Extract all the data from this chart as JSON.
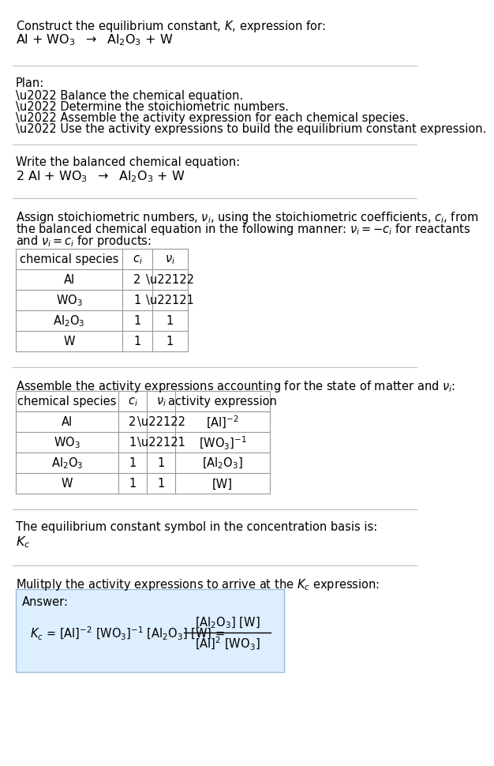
{
  "bg_color": "#ffffff",
  "text_color": "#000000",
  "answer_box_color": "#ddeeff",
  "table_border_color": "#999999",
  "line_color": "#bbbbbb",
  "section1_line1": "Construct the equilibrium constant, $K$, expression for:",
  "section1_line2": "Al + WO$_3$  $\\rightarrow$  Al$_2$O$_3$ + W",
  "plan_header": "Plan:",
  "plan_items": [
    "\\u2022 Balance the chemical equation.",
    "\\u2022 Determine the stoichiometric numbers.",
    "\\u2022 Assemble the activity expression for each chemical species.",
    "\\u2022 Use the activity expressions to build the equilibrium constant expression."
  ],
  "balanced_header": "Write the balanced chemical equation:",
  "balanced_eq": "2 Al + WO$_3$  $\\rightarrow$  Al$_2$O$_3$ + W",
  "stoich_intro_lines": [
    "Assign stoichiometric numbers, $\\nu_i$, using the stoichiometric coefficients, $c_i$, from",
    "the balanced chemical equation in the following manner: $\\nu_i = -c_i$ for reactants",
    "and $\\nu_i = c_i$ for products:"
  ],
  "table1_headers": [
    "chemical species",
    "$c_i$",
    "$\\nu_i$"
  ],
  "table1_rows": [
    [
      "Al",
      "2",
      "\\u22122"
    ],
    [
      "WO$_3$",
      "1",
      "\\u22121"
    ],
    [
      "Al$_2$O$_3$",
      "1",
      "1"
    ],
    [
      "W",
      "1",
      "1"
    ]
  ],
  "activity_intro": "Assemble the activity expressions accounting for the state of matter and $\\nu_i$:",
  "table2_headers": [
    "chemical species",
    "$c_i$",
    "$\\nu_i$",
    "activity expression"
  ],
  "table2_rows": [
    [
      "Al",
      "2",
      "\\u22122",
      "[Al]$^{-2}$"
    ],
    [
      "WO$_3$",
      "1",
      "\\u22121",
      "[WO$_3$]$^{-1}$"
    ],
    [
      "Al$_2$O$_3$",
      "1",
      "1",
      "[Al$_2$O$_3$]"
    ],
    [
      "W",
      "1",
      "1",
      "[W]"
    ]
  ],
  "kc_text": "The equilibrium constant symbol in the concentration basis is:",
  "kc_symbol": "$K_c$",
  "multiply_text": "Mulitply the activity expressions to arrive at the $K_c$ expression:",
  "answer_label": "Answer:",
  "font_size": 10.5
}
